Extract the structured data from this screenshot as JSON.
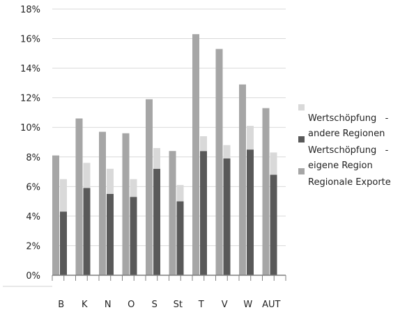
{
  "chart_data": {
    "type": "bar",
    "stacked_partial": true,
    "categories": [
      "B",
      "K",
      "N",
      "O",
      "S",
      "St",
      "T",
      "V",
      "W",
      "AUT"
    ],
    "series": [
      {
        "name": "Regionale Exporte",
        "color": "#a6a6a6",
        "values": [
          8.1,
          10.6,
          9.7,
          9.6,
          11.9,
          8.4,
          16.3,
          15.3,
          12.9,
          11.3
        ]
      },
      {
        "name": "Wertschöpfung - eigene Region",
        "color": "#595959",
        "values": [
          4.3,
          5.9,
          5.5,
          5.3,
          7.2,
          5.0,
          8.4,
          7.9,
          8.5,
          6.8
        ]
      },
      {
        "name": "Wertschöpfung - andere Regionen",
        "color": "#d9d9d9",
        "values": [
          2.2,
          1.7,
          1.7,
          1.2,
          1.4,
          1.1,
          1.0,
          0.9,
          1.6,
          1.5
        ]
      }
    ],
    "ylim": [
      0,
      18
    ],
    "yticks": [
      "0%",
      "2%",
      "4%",
      "6%",
      "8%",
      "10%",
      "12%",
      "14%",
      "16%",
      "18%"
    ],
    "grid": true,
    "legend_position": "right",
    "legend": [
      {
        "lines": [
          "Wertschöpfung   -",
          "andere Regionen"
        ],
        "color": "#d9d9d9"
      },
      {
        "lines": [
          "Wertschöpfung   -",
          "eigene Region"
        ],
        "color": "#595959"
      },
      {
        "lines": [
          "Regionale Exporte"
        ],
        "color": "#a6a6a6"
      }
    ]
  }
}
